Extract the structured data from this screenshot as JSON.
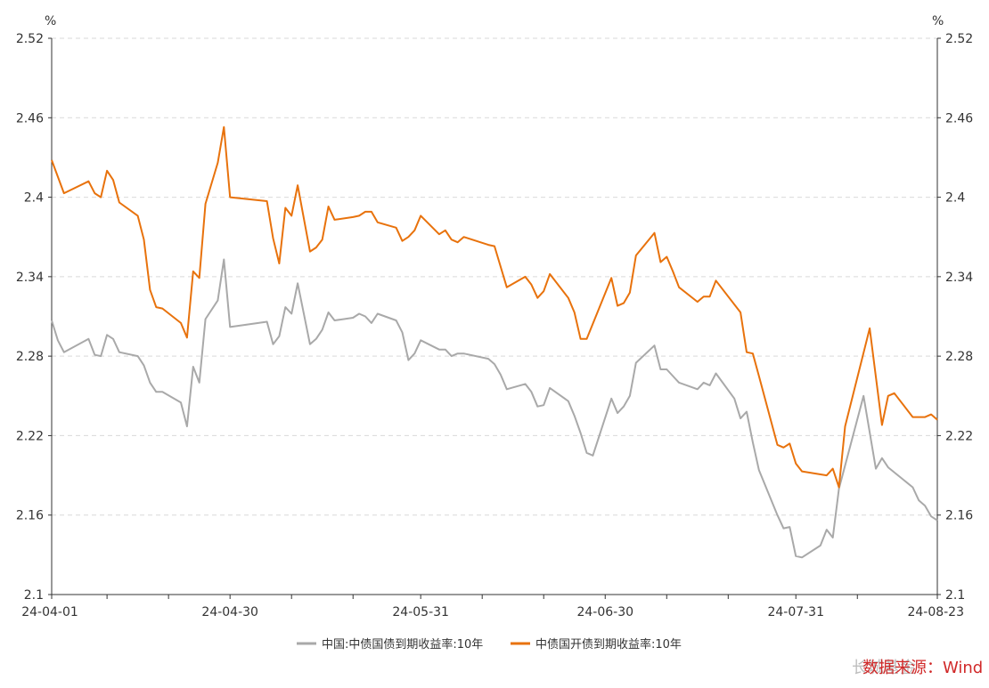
{
  "chart_data": {
    "type": "line",
    "title": "",
    "y_unit_left": "%",
    "y_unit_right": "%",
    "ylim": [
      2.1,
      2.52
    ],
    "y_ticks": [
      2.1,
      2.16,
      2.22,
      2.28,
      2.34,
      2.4,
      2.46,
      2.52
    ],
    "y_tick_labels": [
      "2.1",
      "2.16",
      "2.22",
      "2.28",
      "2.34",
      "2.4",
      "2.46",
      "2.52"
    ],
    "x_range": [
      "2024-04-01",
      "2024-08-23"
    ],
    "x_ticks": [
      {
        "date": "2024-04-01",
        "label": "24-04-01"
      },
      {
        "date": "2024-04-30",
        "label": "24-04-30"
      },
      {
        "date": "2024-05-31",
        "label": "24-05-31"
      },
      {
        "date": "2024-06-30",
        "label": "24-06-30"
      },
      {
        "date": "2024-07-31",
        "label": "24-07-31"
      },
      {
        "date": "2024-08-23",
        "label": "24-08-23"
      }
    ],
    "x_minor_ticks": [
      "2024-04-10",
      "2024-04-20",
      "2024-05-10",
      "2024-05-20",
      "2024-06-10",
      "2024-06-20",
      "2024-07-10",
      "2024-07-20",
      "2024-08-10"
    ],
    "grid": true,
    "legend_position": "bottom-center",
    "series": [
      {
        "name": "中国:中债国债到期收益率:10年",
        "color": "#a9a9a9",
        "points": [
          [
            "2024-04-01",
            2.307
          ],
          [
            "2024-04-02",
            2.292
          ],
          [
            "2024-04-03",
            2.283
          ],
          [
            "2024-04-07",
            2.293
          ],
          [
            "2024-04-08",
            2.281
          ],
          [
            "2024-04-09",
            2.28
          ],
          [
            "2024-04-10",
            2.296
          ],
          [
            "2024-04-11",
            2.293
          ],
          [
            "2024-04-12",
            2.283
          ],
          [
            "2024-04-15",
            2.28
          ],
          [
            "2024-04-16",
            2.273
          ],
          [
            "2024-04-17",
            2.26
          ],
          [
            "2024-04-18",
            2.253
          ],
          [
            "2024-04-19",
            2.253
          ],
          [
            "2024-04-22",
            2.245
          ],
          [
            "2024-04-23",
            2.227
          ],
          [
            "2024-04-24",
            2.272
          ],
          [
            "2024-04-25",
            2.26
          ],
          [
            "2024-04-26",
            2.308
          ],
          [
            "2024-04-28",
            2.322
          ],
          [
            "2024-04-29",
            2.353
          ],
          [
            "2024-04-30",
            2.302
          ],
          [
            "2024-05-06",
            2.306
          ],
          [
            "2024-05-07",
            2.289
          ],
          [
            "2024-05-08",
            2.295
          ],
          [
            "2024-05-09",
            2.317
          ],
          [
            "2024-05-10",
            2.312
          ],
          [
            "2024-05-11",
            2.335
          ],
          [
            "2024-05-13",
            2.289
          ],
          [
            "2024-05-14",
            2.293
          ],
          [
            "2024-05-15",
            2.3
          ],
          [
            "2024-05-16",
            2.313
          ],
          [
            "2024-05-17",
            2.307
          ],
          [
            "2024-05-20",
            2.309
          ],
          [
            "2024-05-21",
            2.312
          ],
          [
            "2024-05-22",
            2.31
          ],
          [
            "2024-05-23",
            2.305
          ],
          [
            "2024-05-24",
            2.312
          ],
          [
            "2024-05-27",
            2.307
          ],
          [
            "2024-05-28",
            2.298
          ],
          [
            "2024-05-29",
            2.277
          ],
          [
            "2024-05-30",
            2.282
          ],
          [
            "2024-05-31",
            2.292
          ],
          [
            "2024-06-03",
            2.285
          ],
          [
            "2024-06-04",
            2.285
          ],
          [
            "2024-06-05",
            2.28
          ],
          [
            "2024-06-06",
            2.282
          ],
          [
            "2024-06-07",
            2.282
          ],
          [
            "2024-06-11",
            2.278
          ],
          [
            "2024-06-12",
            2.274
          ],
          [
            "2024-06-13",
            2.266
          ],
          [
            "2024-06-14",
            2.255
          ],
          [
            "2024-06-17",
            2.259
          ],
          [
            "2024-06-18",
            2.253
          ],
          [
            "2024-06-19",
            2.242
          ],
          [
            "2024-06-20",
            2.243
          ],
          [
            "2024-06-21",
            2.256
          ],
          [
            "2024-06-24",
            2.246
          ],
          [
            "2024-06-25",
            2.235
          ],
          [
            "2024-06-26",
            2.222
          ],
          [
            "2024-06-27",
            2.207
          ],
          [
            "2024-06-28",
            2.205
          ],
          [
            "2024-07-01",
            2.248
          ],
          [
            "2024-07-02",
            2.237
          ],
          [
            "2024-07-03",
            2.242
          ],
          [
            "2024-07-04",
            2.25
          ],
          [
            "2024-07-05",
            2.275
          ],
          [
            "2024-07-08",
            2.288
          ],
          [
            "2024-07-09",
            2.27
          ],
          [
            "2024-07-10",
            2.27
          ],
          [
            "2024-07-11",
            2.265
          ],
          [
            "2024-07-12",
            2.26
          ],
          [
            "2024-07-15",
            2.255
          ],
          [
            "2024-07-16",
            2.26
          ],
          [
            "2024-07-17",
            2.258
          ],
          [
            "2024-07-18",
            2.267
          ],
          [
            "2024-07-21",
            2.248
          ],
          [
            "2024-07-22",
            2.233
          ],
          [
            "2024-07-23",
            2.238
          ],
          [
            "2024-07-24",
            2.215
          ],
          [
            "2024-07-25",
            2.194
          ],
          [
            "2024-07-28",
            2.16
          ],
          [
            "2024-07-29",
            2.15
          ],
          [
            "2024-07-30",
            2.151
          ],
          [
            "2024-07-31",
            2.129
          ],
          [
            "2024-08-01",
            2.128
          ],
          [
            "2024-08-04",
            2.137
          ],
          [
            "2024-08-05",
            2.149
          ],
          [
            "2024-08-06",
            2.143
          ],
          [
            "2024-08-07",
            2.18
          ],
          [
            "2024-08-11",
            2.25
          ],
          [
            "2024-08-13",
            2.195
          ],
          [
            "2024-08-14",
            2.203
          ],
          [
            "2024-08-15",
            2.196
          ],
          [
            "2024-08-19",
            2.181
          ],
          [
            "2024-08-20",
            2.171
          ],
          [
            "2024-08-21",
            2.167
          ],
          [
            "2024-08-22",
            2.159
          ],
          [
            "2024-08-23",
            2.156
          ]
        ]
      },
      {
        "name": "中债国开债到期收益率:10年",
        "color": "#e8720c",
        "points": [
          [
            "2024-04-01",
            2.428
          ],
          [
            "2024-04-03",
            2.403
          ],
          [
            "2024-04-07",
            2.412
          ],
          [
            "2024-04-08",
            2.403
          ],
          [
            "2024-04-09",
            2.4
          ],
          [
            "2024-04-10",
            2.42
          ],
          [
            "2024-04-11",
            2.413
          ],
          [
            "2024-04-12",
            2.396
          ],
          [
            "2024-04-15",
            2.386
          ],
          [
            "2024-04-16",
            2.368
          ],
          [
            "2024-04-17",
            2.33
          ],
          [
            "2024-04-18",
            2.317
          ],
          [
            "2024-04-19",
            2.316
          ],
          [
            "2024-04-22",
            2.305
          ],
          [
            "2024-04-23",
            2.294
          ],
          [
            "2024-04-24",
            2.344
          ],
          [
            "2024-04-25",
            2.339
          ],
          [
            "2024-04-26",
            2.395
          ],
          [
            "2024-04-28",
            2.426
          ],
          [
            "2024-04-29",
            2.453
          ],
          [
            "2024-04-30",
            2.4
          ],
          [
            "2024-05-06",
            2.397
          ],
          [
            "2024-05-07",
            2.369
          ],
          [
            "2024-05-08",
            2.35
          ],
          [
            "2024-05-09",
            2.392
          ],
          [
            "2024-05-10",
            2.386
          ],
          [
            "2024-05-11",
            2.409
          ],
          [
            "2024-05-13",
            2.359
          ],
          [
            "2024-05-14",
            2.362
          ],
          [
            "2024-05-15",
            2.368
          ],
          [
            "2024-05-16",
            2.393
          ],
          [
            "2024-05-17",
            2.383
          ],
          [
            "2024-05-20",
            2.385
          ],
          [
            "2024-05-21",
            2.386
          ],
          [
            "2024-05-22",
            2.389
          ],
          [
            "2024-05-23",
            2.389
          ],
          [
            "2024-05-24",
            2.381
          ],
          [
            "2024-05-27",
            2.377
          ],
          [
            "2024-05-28",
            2.367
          ],
          [
            "2024-05-29",
            2.37
          ],
          [
            "2024-05-30",
            2.375
          ],
          [
            "2024-05-31",
            2.386
          ],
          [
            "2024-06-03",
            2.372
          ],
          [
            "2024-06-04",
            2.375
          ],
          [
            "2024-06-05",
            2.368
          ],
          [
            "2024-06-06",
            2.366
          ],
          [
            "2024-06-07",
            2.37
          ],
          [
            "2024-06-11",
            2.364
          ],
          [
            "2024-06-12",
            2.363
          ],
          [
            "2024-06-14",
            2.332
          ],
          [
            "2024-06-17",
            2.34
          ],
          [
            "2024-06-18",
            2.334
          ],
          [
            "2024-06-19",
            2.324
          ],
          [
            "2024-06-20",
            2.329
          ],
          [
            "2024-06-21",
            2.342
          ],
          [
            "2024-06-24",
            2.324
          ],
          [
            "2024-06-25",
            2.313
          ],
          [
            "2024-06-26",
            2.293
          ],
          [
            "2024-06-27",
            2.293
          ],
          [
            "2024-07-01",
            2.339
          ],
          [
            "2024-07-02",
            2.318
          ],
          [
            "2024-07-03",
            2.32
          ],
          [
            "2024-07-04",
            2.328
          ],
          [
            "2024-07-05",
            2.356
          ],
          [
            "2024-07-08",
            2.373
          ],
          [
            "2024-07-09",
            2.351
          ],
          [
            "2024-07-10",
            2.355
          ],
          [
            "2024-07-11",
            2.344
          ],
          [
            "2024-07-12",
            2.332
          ],
          [
            "2024-07-15",
            2.321
          ],
          [
            "2024-07-16",
            2.325
          ],
          [
            "2024-07-17",
            2.325
          ],
          [
            "2024-07-18",
            2.337
          ],
          [
            "2024-07-22",
            2.313
          ],
          [
            "2024-07-23",
            2.283
          ],
          [
            "2024-07-24",
            2.282
          ],
          [
            "2024-07-25",
            2.265
          ],
          [
            "2024-07-28",
            2.213
          ],
          [
            "2024-07-29",
            2.211
          ],
          [
            "2024-07-30",
            2.214
          ],
          [
            "2024-07-31",
            2.199
          ],
          [
            "2024-08-01",
            2.193
          ],
          [
            "2024-08-05",
            2.19
          ],
          [
            "2024-08-06",
            2.195
          ],
          [
            "2024-08-07",
            2.181
          ],
          [
            "2024-08-08",
            2.227
          ],
          [
            "2024-08-12",
            2.301
          ],
          [
            "2024-08-14",
            2.228
          ],
          [
            "2024-08-15",
            2.25
          ],
          [
            "2024-08-16",
            2.252
          ],
          [
            "2024-08-19",
            2.234
          ],
          [
            "2024-08-20",
            2.234
          ],
          [
            "2024-08-21",
            2.234
          ],
          [
            "2024-08-22",
            2.236
          ],
          [
            "2024-08-23",
            2.232
          ]
        ]
      }
    ]
  }
}
